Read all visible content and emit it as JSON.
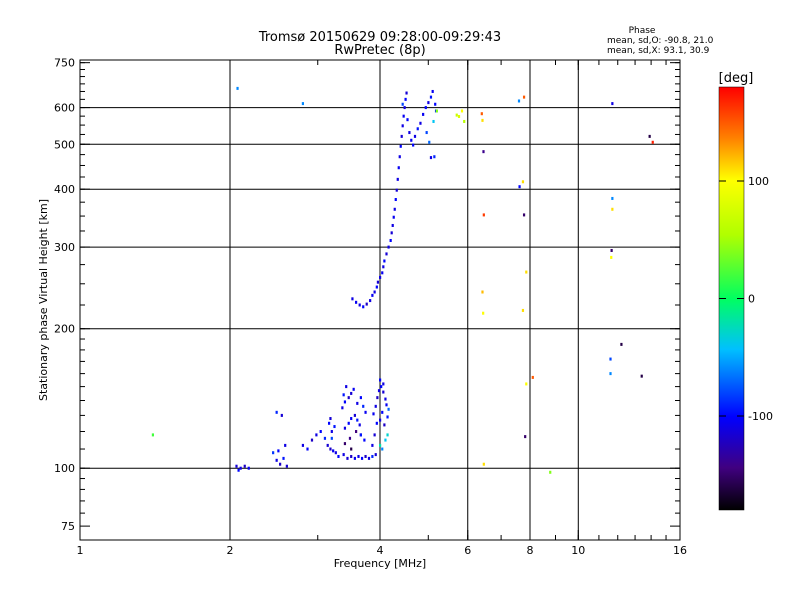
{
  "chart_data": {
    "type": "scatter",
    "title": "Tromsø 20150629 09:28:00-09:29:43",
    "subtitle": "RwPretec (8p)",
    "xlabel": "Frequency [MHz]",
    "ylabel": "Stationary phase Virtual Height [km]",
    "x_scale": "log",
    "y_scale": "log",
    "xlim": [
      1,
      16
    ],
    "ylim": [
      70,
      760
    ],
    "x_ticks": [
      1,
      2,
      4,
      6,
      8,
      10,
      16
    ],
    "y_ticks": [
      75,
      100,
      200,
      300,
      400,
      500,
      600,
      750
    ],
    "x_major_lines": [
      2,
      4,
      6,
      8,
      10
    ],
    "y_major_lines": [
      100,
      200,
      300,
      400,
      500,
      600
    ],
    "grid": true,
    "phase_legend": {
      "title": "Phase",
      "line1": "mean, sd,O: -90.8, 21.0",
      "line2": "mean, sd,X:  93.1, 30.9"
    },
    "colorbar": {
      "label": "[deg]",
      "range": [
        -180,
        180
      ],
      "ticks": [
        100,
        0,
        -100
      ],
      "tick_labels": [
        "100",
        "0",
        "-100"
      ]
    },
    "series": [
      {
        "points": [
          [
            2.06,
            101,
            -115
          ],
          [
            2.1,
            100,
            -110
          ],
          [
            2.14,
            101,
            -120
          ],
          [
            2.08,
            99,
            -100
          ],
          [
            2.18,
            100,
            -105
          ],
          [
            2.48,
            104,
            -110
          ],
          [
            2.52,
            102,
            -120
          ],
          [
            2.56,
            105,
            -95
          ],
          [
            2.6,
            101,
            -115
          ],
          [
            2.5,
            109,
            -100
          ],
          [
            2.44,
            108,
            -85
          ],
          [
            2.58,
            112,
            -110
          ],
          [
            2.54,
            130,
            -115
          ],
          [
            2.48,
            132,
            -90
          ],
          [
            2.8,
            112,
            -110
          ],
          [
            2.86,
            110,
            -100
          ],
          [
            2.92,
            115,
            -120
          ],
          [
            2.98,
            118,
            -110
          ],
          [
            3.04,
            120,
            -100
          ],
          [
            3.1,
            116,
            -90
          ],
          [
            3.14,
            112,
            -115
          ],
          [
            3.18,
            110,
            -120
          ],
          [
            3.22,
            109,
            -105
          ],
          [
            3.26,
            108,
            -110
          ],
          [
            3.3,
            106,
            -100
          ],
          [
            3.2,
            120,
            -110
          ],
          [
            3.24,
            123,
            -95
          ],
          [
            3.16,
            125,
            -100
          ],
          [
            3.2,
            116,
            -80
          ],
          [
            3.18,
            128,
            -115
          ],
          [
            3.38,
            107,
            -110
          ],
          [
            3.44,
            105,
            -115
          ],
          [
            3.5,
            106,
            -120
          ],
          [
            3.56,
            105,
            -105
          ],
          [
            3.62,
            106,
            -110
          ],
          [
            3.68,
            105,
            -100
          ],
          [
            3.74,
            106,
            -120
          ],
          [
            3.8,
            105,
            -110
          ],
          [
            3.86,
            106,
            -90
          ],
          [
            3.92,
            107,
            -115
          ],
          [
            3.4,
            113,
            -150
          ],
          [
            3.48,
            116,
            -140
          ],
          [
            3.58,
            120,
            -145
          ],
          [
            3.5,
            110,
            -160
          ],
          [
            3.66,
            118,
            -130
          ],
          [
            3.4,
            122,
            -110
          ],
          [
            3.46,
            125,
            -100
          ],
          [
            3.5,
            128,
            -105
          ],
          [
            3.56,
            130,
            -115
          ],
          [
            3.6,
            127,
            -95
          ],
          [
            3.64,
            124,
            -110
          ],
          [
            3.36,
            135,
            -110
          ],
          [
            3.4,
            139,
            -100
          ],
          [
            3.46,
            142,
            -120
          ],
          [
            3.5,
            145,
            -115
          ],
          [
            3.54,
            148,
            -105
          ],
          [
            3.42,
            150,
            -110
          ],
          [
            3.38,
            144,
            -95
          ],
          [
            3.6,
            138,
            -110
          ],
          [
            3.66,
            142,
            -100
          ],
          [
            3.7,
            136,
            -90
          ],
          [
            3.74,
            132,
            -105
          ],
          [
            3.66,
            118,
            -95
          ],
          [
            3.72,
            115,
            -100
          ],
          [
            3.86,
            112,
            -110
          ],
          [
            3.9,
            118,
            -115
          ],
          [
            3.94,
            125,
            -100
          ],
          [
            3.88,
            131,
            -105
          ],
          [
            3.92,
            136,
            -110
          ],
          [
            3.95,
            142,
            -120
          ],
          [
            3.98,
            147,
            -110
          ],
          [
            4.02,
            150,
            -100
          ],
          [
            4.06,
            146,
            -115
          ],
          [
            4.1,
            141,
            -110
          ],
          [
            4.12,
            137,
            -105
          ],
          [
            4.04,
            132,
            -100
          ],
          [
            4.0,
            127,
            -110
          ],
          [
            4.08,
            124,
            -120
          ],
          [
            4.14,
            129,
            -95
          ],
          [
            4.06,
            152,
            -110
          ],
          [
            4.0,
            155,
            -100
          ],
          [
            4.1,
            115,
            -40
          ],
          [
            4.14,
            118,
            -30
          ],
          [
            4.0,
            112,
            -20
          ],
          [
            4.04,
            110,
            -60
          ],
          [
            4.16,
            134,
            -70
          ],
          [
            3.52,
            232,
            -110
          ],
          [
            3.58,
            228,
            -105
          ],
          [
            3.64,
            225,
            -110
          ],
          [
            3.7,
            223,
            -100
          ],
          [
            3.76,
            226,
            -120
          ],
          [
            3.82,
            230,
            -110
          ],
          [
            3.86,
            236,
            -105
          ],
          [
            3.9,
            240,
            -110
          ],
          [
            3.94,
            246,
            -100
          ],
          [
            3.96,
            252,
            -115
          ],
          [
            4.0,
            258,
            -110
          ],
          [
            4.04,
            264,
            -105
          ],
          [
            4.06,
            272,
            -110
          ],
          [
            4.08,
            280,
            -100
          ],
          [
            4.12,
            290,
            -115
          ],
          [
            4.16,
            300,
            -110
          ],
          [
            4.2,
            310,
            -100
          ],
          [
            4.22,
            322,
            -115
          ],
          [
            4.24,
            334,
            -110
          ],
          [
            4.26,
            348,
            -105
          ],
          [
            4.28,
            362,
            -110
          ],
          [
            4.3,
            380,
            -100
          ],
          [
            4.32,
            398,
            -115
          ],
          [
            4.34,
            420,
            -110
          ],
          [
            4.36,
            445,
            -105
          ],
          [
            4.38,
            470,
            -110
          ],
          [
            4.4,
            495,
            -100
          ],
          [
            4.42,
            520,
            -115
          ],
          [
            4.44,
            548,
            -110
          ],
          [
            4.46,
            575,
            -105
          ],
          [
            4.48,
            600,
            -110
          ],
          [
            4.5,
            625,
            -100
          ],
          [
            4.52,
            645,
            -115
          ],
          [
            4.44,
            610,
            -80
          ],
          [
            4.54,
            565,
            -100
          ],
          [
            4.58,
            530,
            -110
          ],
          [
            4.62,
            510,
            -105
          ],
          [
            4.66,
            498,
            -100
          ],
          [
            4.7,
            520,
            -110
          ],
          [
            4.76,
            540,
            -95
          ],
          [
            4.82,
            555,
            -110
          ],
          [
            4.88,
            580,
            -105
          ],
          [
            4.94,
            600,
            -100
          ],
          [
            5.0,
            615,
            -110
          ],
          [
            5.06,
            632,
            -95
          ],
          [
            5.1,
            650,
            -105
          ],
          [
            5.16,
            610,
            -100
          ],
          [
            5.18,
            590,
            -90
          ],
          [
            4.96,
            530,
            -80
          ],
          [
            5.02,
            505,
            -70
          ],
          [
            5.12,
            560,
            -40
          ],
          [
            5.2,
            590,
            40
          ],
          [
            5.14,
            470,
            -90
          ],
          [
            5.06,
            468,
            -110
          ],
          [
            5.7,
            578,
            70
          ],
          [
            5.76,
            574,
            80
          ],
          [
            5.84,
            590,
            100
          ],
          [
            5.9,
            560,
            60
          ],
          [
            1.4,
            118,
            20
          ],
          [
            2.07,
            660,
            -60
          ],
          [
            2.8,
            612,
            -60
          ],
          [
            6.4,
            582,
            150
          ],
          [
            6.42,
            563,
            110
          ],
          [
            6.45,
            482,
            -140
          ],
          [
            6.46,
            352,
            160
          ],
          [
            6.42,
            240,
            120
          ],
          [
            6.44,
            216,
            100
          ],
          [
            6.46,
            102,
            110
          ],
          [
            7.78,
            632,
            150
          ],
          [
            7.6,
            620,
            -60
          ],
          [
            7.74,
            415,
            110
          ],
          [
            7.62,
            405,
            -100
          ],
          [
            7.78,
            352,
            -150
          ],
          [
            7.86,
            265,
            110
          ],
          [
            7.74,
            219,
            110
          ],
          [
            7.86,
            152,
            100
          ],
          [
            8.1,
            157,
            150
          ],
          [
            7.82,
            117,
            -150
          ],
          [
            8.78,
            98,
            40
          ],
          [
            11.7,
            612,
            -110
          ],
          [
            11.7,
            382,
            -60
          ],
          [
            11.7,
            362,
            110
          ],
          [
            11.66,
            295,
            -150
          ],
          [
            11.64,
            285,
            100
          ],
          [
            11.6,
            172,
            -80
          ],
          [
            12.2,
            185,
            -160
          ],
          [
            11.6,
            160,
            -60
          ],
          [
            13.4,
            158,
            -160
          ],
          [
            13.9,
            520,
            -160
          ],
          [
            14.1,
            505,
            170
          ]
        ]
      }
    ]
  }
}
